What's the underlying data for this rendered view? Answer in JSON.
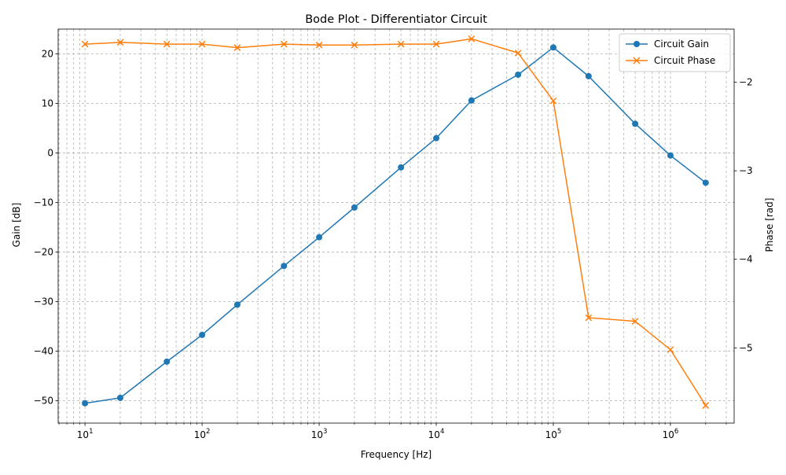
{
  "chart_data": {
    "type": "line",
    "title": "Bode Plot - Differentiator Circuit",
    "xlabel": "Frequency [Hz]",
    "ylabel": "Gain [dB]",
    "y2label": "Phase [rad]",
    "xscale": "log",
    "xlim": [
      5.9,
      3500000
    ],
    "ylim": [
      -54.5,
      25
    ],
    "y2lim": [
      -5.85,
      -1.4
    ],
    "grid": true,
    "grid_minor_x": true,
    "legend_position": "upper right",
    "x_ticks": [
      {
        "value": 10,
        "base": "10",
        "exp": "1"
      },
      {
        "value": 100,
        "base": "10",
        "exp": "2"
      },
      {
        "value": 1000,
        "base": "10",
        "exp": "3"
      },
      {
        "value": 10000,
        "base": "10",
        "exp": "4"
      },
      {
        "value": 100000,
        "base": "10",
        "exp": "5"
      },
      {
        "value": 1000000,
        "base": "10",
        "exp": "6"
      }
    ],
    "y_ticks": [
      {
        "value": 20,
        "label": "20"
      },
      {
        "value": 10,
        "label": "10"
      },
      {
        "value": 0,
        "label": "0"
      },
      {
        "value": -10,
        "label": "−10"
      },
      {
        "value": -20,
        "label": "−20"
      },
      {
        "value": -30,
        "label": "−30"
      },
      {
        "value": -40,
        "label": "−40"
      },
      {
        "value": -50,
        "label": "−50"
      }
    ],
    "y2_ticks": [
      {
        "value": -2,
        "label": "−2"
      },
      {
        "value": -3,
        "label": "−3"
      },
      {
        "value": -4,
        "label": "−4"
      },
      {
        "value": -5,
        "label": "−5"
      }
    ],
    "x": [
      10,
      20,
      50,
      100,
      200,
      500,
      1000,
      2000,
      5000,
      10000,
      20000,
      50000,
      100000,
      200000,
      500000,
      1000000,
      2000000
    ],
    "series": [
      {
        "name": "Circuit Gain",
        "axis": "left",
        "color": "#1f77b4",
        "marker": "circle",
        "values": [
          -50.5,
          -49.4,
          -42.1,
          -36.7,
          -30.6,
          -22.8,
          -17.0,
          -11.0,
          -2.9,
          3.0,
          10.6,
          15.8,
          21.3,
          15.5,
          5.9,
          -0.5,
          -6.0
        ]
      },
      {
        "name": "Circuit Phase",
        "axis": "right",
        "color": "#ff7f0e",
        "marker": "x",
        "values": [
          -1.57,
          -1.55,
          -1.57,
          -1.57,
          -1.61,
          -1.57,
          -1.58,
          -1.58,
          -1.57,
          -1.57,
          -1.51,
          -1.67,
          -2.21,
          -4.66,
          -4.7,
          -5.02,
          -5.65
        ]
      }
    ]
  }
}
